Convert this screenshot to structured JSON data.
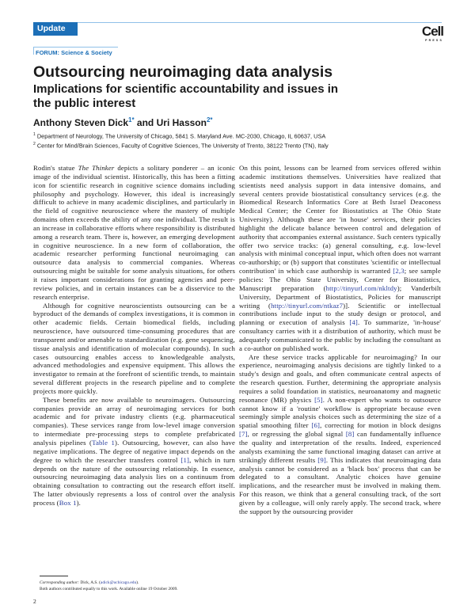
{
  "header": {
    "section_label": "Update",
    "logo_text": "Cell",
    "logo_subtext": "PRESS",
    "accent_color": "#1c6fb7",
    "forum_label": "FORUM: Science & Society"
  },
  "article": {
    "title": "Outsourcing neuroimaging data analysis",
    "subtitle": "Implications for scientific accountability and issues in the public interest",
    "authors": [
      {
        "name": "Anthony Steven Dick",
        "mark": "1*"
      },
      {
        "name": "Uri Hasson",
        "mark": "2*"
      }
    ],
    "authors_joiner": " and ",
    "affiliations": [
      {
        "num": "1",
        "text": "Department of Neurology, The University of Chicago, 5841 S. Maryland Ave. MC-2030, Chicago, IL 60637, USA"
      },
      {
        "num": "2",
        "text": "Center for Mind/Brain Sciences, Faculty of Cognitive Sciences, The University of Trento, 38122 Trento (TN), Italy"
      }
    ]
  },
  "body": {
    "left": [
      [
        {
          "t": "Rodin's statue "
        },
        {
          "t": "The Thinker",
          "em": true
        },
        {
          "t": " depicts a solitary ponderer – an iconic image of the individual scientist. Historically, this has been a fitting icon for scientific research in cognitive science domains including philosophy and psychology. However, this ideal is increasingly difficult to achieve in many academic disciplines, and particularly in the field of cognitive neuroscience where the mastery of multiple domains often exceeds the ability of any one individual. The result is an increase in collaborative efforts where responsibility is distributed among a research team. There is, however, an emerging development in cognitive neuroscience. In a new form of collaboration, the academic researcher performing functional neuroimaging can outsource data analysis to commercial companies. Whereas outsourcing might be suitable for some analysis situations, for others it raises important considerations for granting agencies and peer-review policies, and in certain instances can be a disservice to the research enterprise."
        }
      ],
      [
        {
          "t": "Although for cognitive neuroscientists outsourcing can be a byproduct of the demands of complex investigations, it is common in other academic fields. Certain biomedical fields, including neuroscience, have outsourced time-consuming procedures that are transparent and/or amenable to standardization (e.g. gene sequencing, tissue analysis and identification of molecular compounds). In such cases outsourcing enables access to knowledgeable analysts, advanced methodologies and expensive equipment. This allows the investigator to remain at the forefront of scientific trends, to maintain several different projects in the research pipeline and to complete projects more quickly."
        }
      ],
      [
        {
          "t": "These benefits are now available to neuroimagers. Outsourcing companies provide an array of neuroimaging services for both academic and for private industry clients (e.g. pharmaceutical companies). These services range from low-level image conversion to intermediate pre-processing steps to complete prefabricated analysis pipelines ("
        },
        {
          "t": "Table 1",
          "link": true
        },
        {
          "t": "). Outsourcing, however, can also have negative implications. The degree of negative impact depends on the degree to which the researcher transfers control "
        },
        {
          "t": "[1]",
          "link": true
        },
        {
          "t": ", which in turn depends on the nature of the outsourcing relationship. In essence, outsourcing neuroimaging data analysis lies on a continuum from obtaining consultation to contracting out the research effort itself. The latter obviously represents a loss of control over the analysis process ("
        },
        {
          "t": "Box 1",
          "link": true
        },
        {
          "t": ")."
        }
      ]
    ],
    "right": [
      [
        {
          "t": "On this point, lessons can be learned from services offered within academic institutions themselves. Universities have realized that scientists need analysis support in data intensive domains, and several centers provide biostatistical consultancy services (e.g. the Biomedical Research Informatics Core at Beth Israel Deaconess Medical Center; the Center for Biostatistics at The Ohio State University). Although these are 'in house' services, their policies highlight the delicate balance between control and delegation of authority that accompanies external assistance. Such centers typically offer two service tracks: (a) general consulting, e.g. low-level analysis with minimal conceptual input, which often does not warrant co-authorship; or (b) support that constitutes 'scientific or intellectual contribution' in which case authorship is warranted "
        },
        {
          "t": "[2,3",
          "link": true
        },
        {
          "t": "; see sample policies: The Ohio State University, Center for Biostatistics, Manuscript preparation ("
        },
        {
          "t": "http://tinyurl.com/nkltdy",
          "link": true
        },
        {
          "t": "); Vanderbilt University, Department of Biostatistics, Policies for manuscript writing ("
        },
        {
          "t": "http://tinyurl.com/ntkaz7",
          "link": true
        },
        {
          "t": ")]. Scientific or intellectual contributions include input to the study design or protocol, and planning or execution of analysis "
        },
        {
          "t": "[4]",
          "link": true
        },
        {
          "t": ". To summarize, 'in-house' consultancy carries with it a distribution of authority, which must be adequately communicated to the public by including the consultant as a co-author on published work."
        }
      ],
      [
        {
          "t": "Are these service tracks applicable for neuroimaging? In our experience, neuroimaging analysis decisions are tightly linked to a study's design and goals, and often communicate central aspects of the research question. Further, determining the appropriate analysis requires a solid foundation in statistics, neuroanatomy and magnetic resonance (MR) physics "
        },
        {
          "t": "[5]",
          "link": true
        },
        {
          "t": ". A non-expert who wants to outsource cannot know if a 'routine' workflow is appropriate because even seemingly simple analysis choices such as determining the size of a spatial smoothing filter "
        },
        {
          "t": "[6]",
          "link": true
        },
        {
          "t": ", correcting for motion in block designs "
        },
        {
          "t": "[7]",
          "link": true
        },
        {
          "t": ", or regressing the global signal "
        },
        {
          "t": "[8]",
          "link": true
        },
        {
          "t": " can fundamentally influence the quality and interpretation of the results. Indeed, experienced analysts examining the same functional imaging dataset can arrive at strikingly different results "
        },
        {
          "t": "[9]",
          "link": true
        },
        {
          "t": ". This indicates that neuroimaging data analysis cannot be considered as a 'black box' process that can be delegated to a consultant. Analytic choices have genuine implications, and the researcher must be involved in making them. For this reason, we think that a general consulting track, of the sort given by a colleague, will only rarely apply. The second track, where the support by the outsourcing provider"
        }
      ]
    ]
  },
  "footnotes": {
    "corresponding_label": "Corresponding author:",
    "corresponding_name": " Dick, A.S. (",
    "corresponding_email": "adick@uchicago.edu",
    "corresponding_end": ").",
    "equal_contribution": "Both authors contributed equally to this work. Available online 19 October 2009."
  },
  "page_number": "2"
}
